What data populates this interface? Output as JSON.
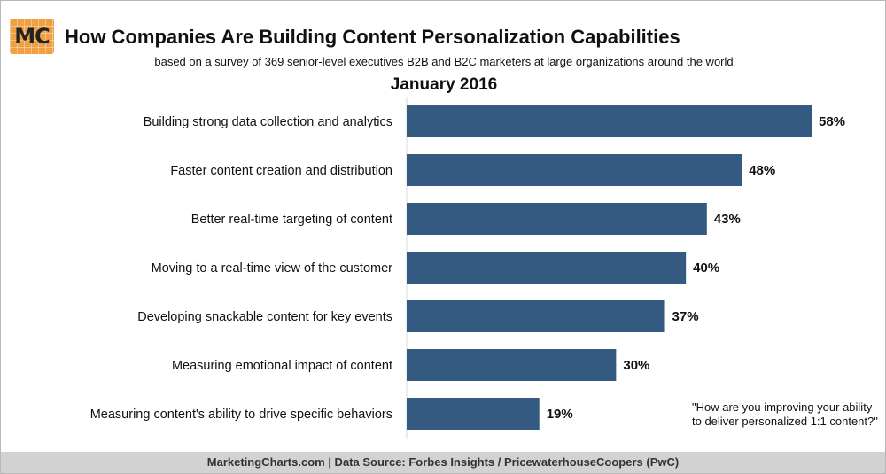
{
  "logo": {
    "text": "MC"
  },
  "header": {
    "title": "How Companies Are Building Content Personalization Capabilities",
    "subtitle": "based on a survey of 369 senior-level executives B2B and B2C marketers at large organizations around the world",
    "period": "January 2016"
  },
  "chart_data": {
    "type": "bar",
    "orientation": "horizontal",
    "categories": [
      "Building strong data collection and analytics",
      "Faster content creation and distribution",
      "Better real-time targeting of content",
      "Moving to a real-time view of the customer",
      "Developing snackable content for key events",
      "Measuring emotional impact of content",
      "Measuring content's ability to drive specific behaviors"
    ],
    "values": [
      58,
      48,
      43,
      40,
      37,
      30,
      19
    ],
    "value_labels": [
      "58%",
      "48%",
      "43%",
      "40%",
      "37%",
      "30%",
      "19%"
    ],
    "bar_color": "#345a82",
    "grid": false
  },
  "note": "\"How are you improving your ability to deliver personalized 1:1 content?\"",
  "footer": "MarketingCharts.com | Data Source: Forbes Insights / PricewaterhouseCoopers (PwC)",
  "colors": {
    "bar": "#345a82",
    "logo": "#f0a044",
    "footer_bg": "#d2d2d2"
  }
}
